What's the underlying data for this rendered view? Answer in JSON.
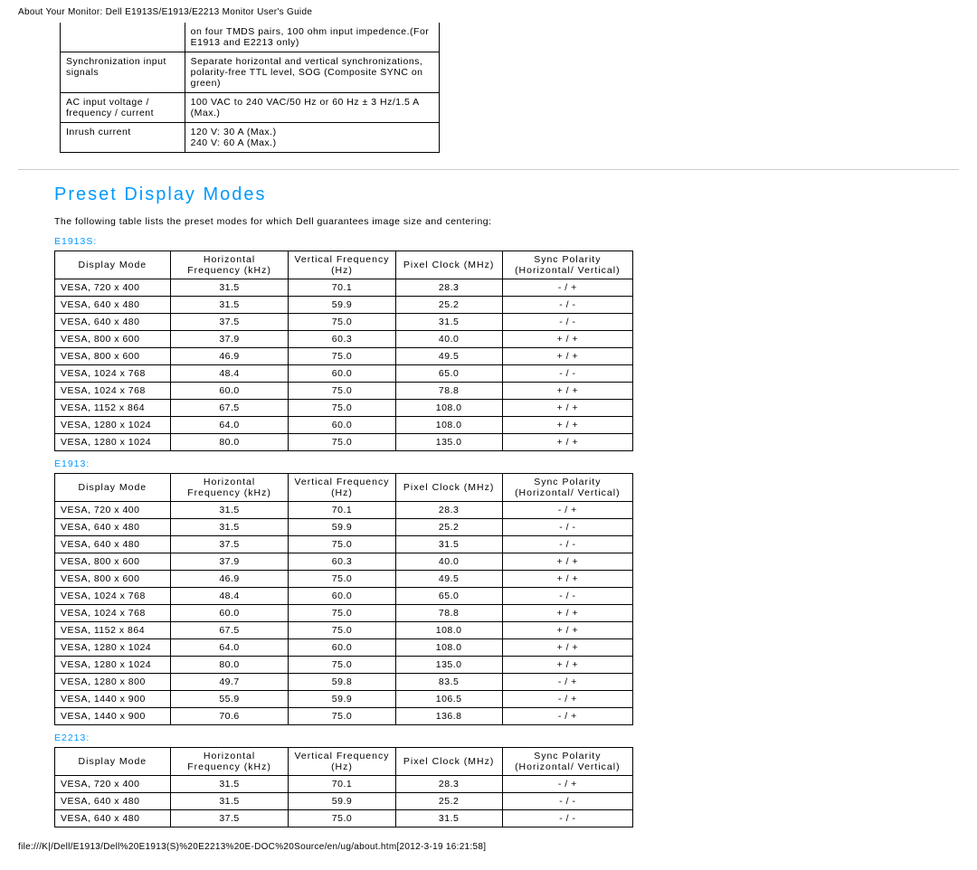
{
  "header": "About Your Monitor: Dell E1913S/E1913/E2213 Monitor User's Guide",
  "footer": "file:///K|/Dell/E1913/Dell%20E1913(S)%20E2213%20E-DOC%20Source/en/ug/about.htm[2012-3-19 16:21:58]",
  "spec_top": {
    "rows": [
      {
        "label": "",
        "value": "on four TMDS pairs, 100 ohm input impedence.(For E1913 and E2213 only)"
      },
      {
        "label": "Synchronization input signals",
        "value": "Separate horizontal and vertical synchronizations, polarity-free TTL level, SOG (Composite SYNC on green)"
      },
      {
        "label": "AC input voltage / frequency / current",
        "value": "100 VAC to 240 VAC/50 Hz or 60 Hz ± 3 Hz/1.5 A (Max.)"
      },
      {
        "label": "Inrush current",
        "value": "120 V: 30 A (Max.)\n240 V: 60 A (Max.)"
      }
    ]
  },
  "section": {
    "title": "Preset Display Modes",
    "intro": "The following table lists the preset modes for which Dell guarantees image size and centering:"
  },
  "columns": {
    "display_mode": "Display Mode",
    "h_freq": "Horizontal Frequency (kHz)",
    "v_freq": "Vertical Frequency (Hz)",
    "pixel_clock": "Pixel Clock (MHz)",
    "sync_polarity": "Sync Polarity (Horizontal/ Vertical)"
  },
  "tables": [
    {
      "model": "E1913S:",
      "rows": [
        [
          "VESA, 720 x 400",
          "31.5",
          "70.1",
          "28.3",
          "- / +"
        ],
        [
          "VESA, 640 x 480",
          "31.5",
          "59.9",
          "25.2",
          "- / -"
        ],
        [
          "VESA, 640 x 480",
          "37.5",
          "75.0",
          "31.5",
          "- / -"
        ],
        [
          "VESA, 800 x 600",
          "37.9",
          "60.3",
          "40.0",
          "+ / +"
        ],
        [
          "VESA, 800 x 600",
          "46.9",
          "75.0",
          "49.5",
          "+ / +"
        ],
        [
          "VESA, 1024 x 768",
          "48.4",
          "60.0",
          "65.0",
          "- / -"
        ],
        [
          "VESA, 1024 x 768",
          "60.0",
          "75.0",
          "78.8",
          "+ / +"
        ],
        [
          "VESA, 1152 x 864",
          "67.5",
          "75.0",
          "108.0",
          "+ / +"
        ],
        [
          "VESA, 1280 x 1024",
          "64.0",
          "60.0",
          "108.0",
          "+ / +"
        ],
        [
          "VESA, 1280 x 1024",
          "80.0",
          "75.0",
          "135.0",
          "+ / +"
        ]
      ]
    },
    {
      "model": "E1913:",
      "rows": [
        [
          "VESA, 720 x 400",
          "31.5",
          "70.1",
          "28.3",
          "- / +"
        ],
        [
          "VESA, 640 x 480",
          "31.5",
          "59.9",
          "25.2",
          "- / -"
        ],
        [
          "VESA, 640 x 480",
          "37.5",
          "75.0",
          "31.5",
          "- / -"
        ],
        [
          "VESA, 800 x 600",
          "37.9",
          "60.3",
          "40.0",
          "+ / +"
        ],
        [
          "VESA, 800 x 600",
          "46.9",
          "75.0",
          "49.5",
          "+ / +"
        ],
        [
          "VESA, 1024 x 768",
          "48.4",
          "60.0",
          "65.0",
          "- / -"
        ],
        [
          "VESA, 1024 x 768",
          "60.0",
          "75.0",
          "78.8",
          "+ / +"
        ],
        [
          "VESA, 1152 x 864",
          "67.5",
          "75.0",
          "108.0",
          "+ / +"
        ],
        [
          "VESA, 1280 x 1024",
          "64.0",
          "60.0",
          "108.0",
          "+ / +"
        ],
        [
          "VESA, 1280 x 1024",
          "80.0",
          "75.0",
          "135.0",
          "+ / +"
        ],
        [
          "VESA, 1280 x 800",
          "49.7",
          "59.8",
          "83.5",
          "- / +"
        ],
        [
          "VESA, 1440 x 900",
          "55.9",
          "59.9",
          "106.5",
          "- / +"
        ],
        [
          "VESA, 1440 x 900",
          "70.6",
          "75.0",
          "136.8",
          "- / +"
        ]
      ]
    },
    {
      "model": "E2213:",
      "rows": [
        [
          "VESA, 720 x 400",
          "31.5",
          "70.1",
          "28.3",
          "- / +"
        ],
        [
          "VESA, 640 x 480",
          "31.5",
          "59.9",
          "25.2",
          "- / -"
        ],
        [
          "VESA, 640 x 480",
          "37.5",
          "75.0",
          "31.5",
          "- / -"
        ]
      ]
    }
  ]
}
